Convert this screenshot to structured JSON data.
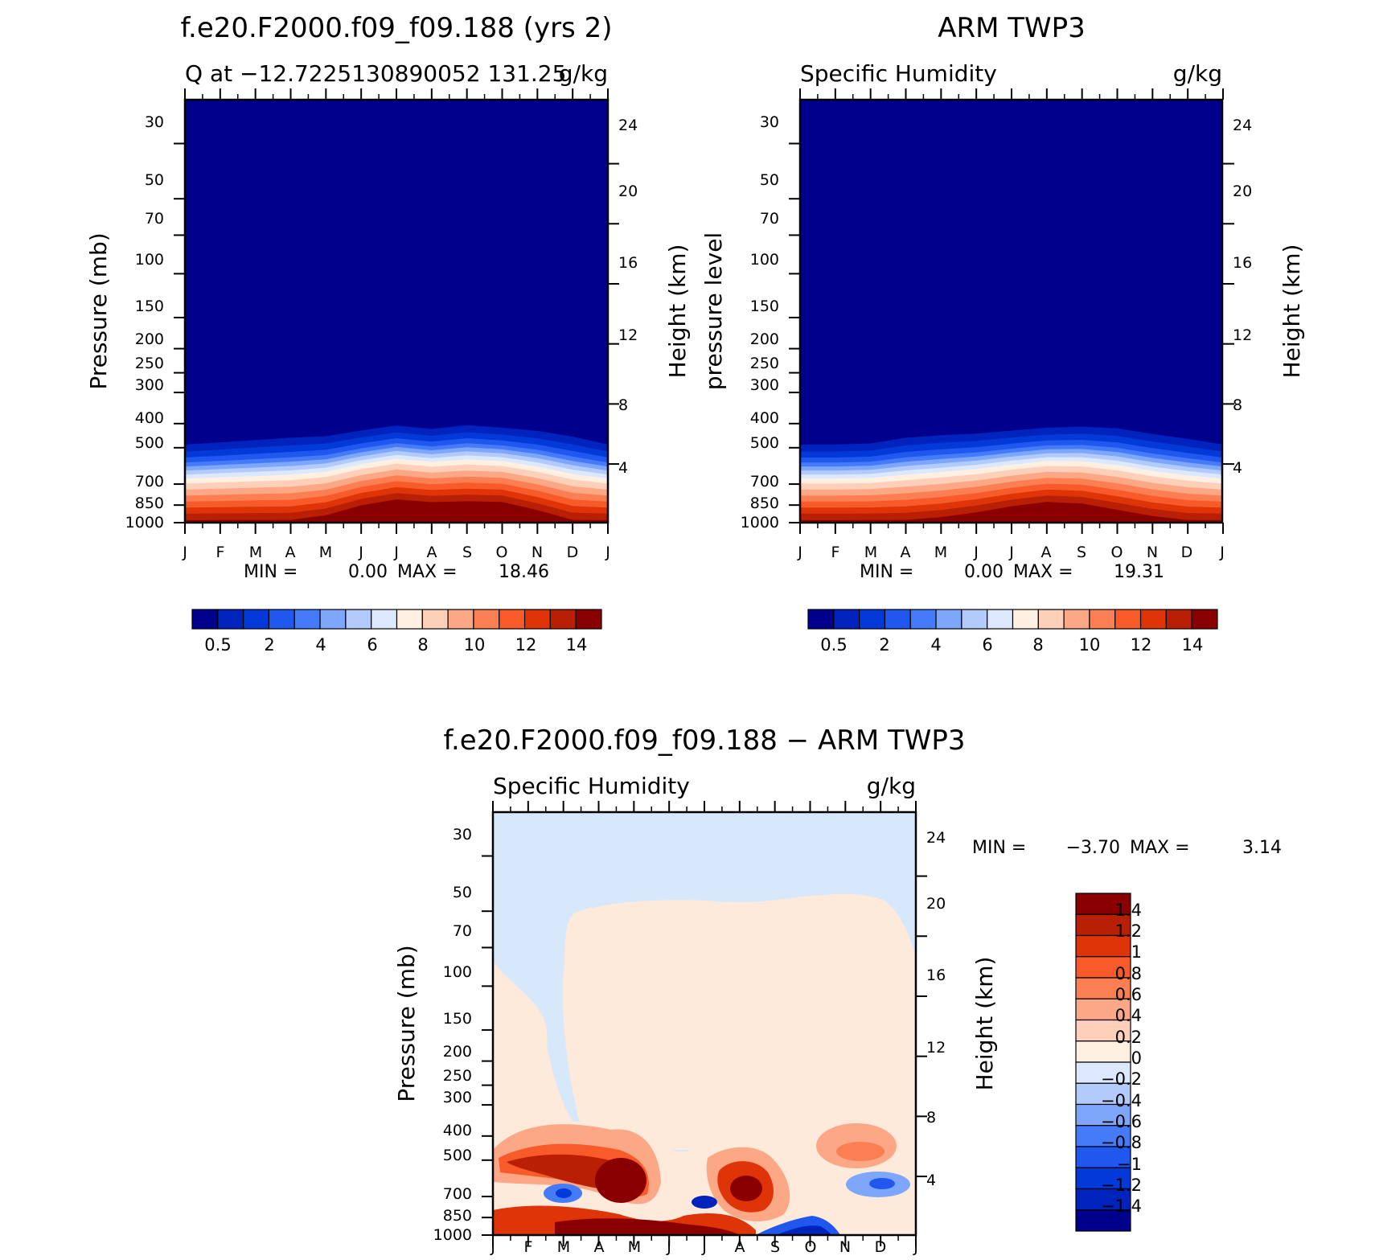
{
  "panels": [
    {
      "id": "model",
      "title": "f.e20.F2000.f09_f09.188 (yrs 2)",
      "left_label": "Q at −12.7225130890052 131.25",
      "units": "g/kg",
      "left_axis_title": "Pressure (mb)",
      "right_axis_title": "Height (km)",
      "min_label": "MIN =",
      "min_value": "0.00",
      "max_label": "MAX =",
      "max_value": "18.46",
      "bottom_air": [
        455,
        445,
        435,
        425,
        420,
        400,
        382,
        395,
        380,
        390,
        400,
        420,
        455
      ],
      "depth_scale": [
        1,
        1,
        1,
        1,
        0.95,
        0.85,
        0.8,
        0.82,
        0.82,
        0.82,
        0.9,
        1,
        1
      ]
    },
    {
      "id": "obs",
      "title": "ARM TWP3",
      "left_label": "Specific Humidity",
      "units": "g/kg",
      "left_axis_title": "pressure level",
      "right_axis_title": "Height (km)",
      "min_label": "MIN =",
      "min_value": "0.00",
      "max_label": "MAX =",
      "max_value": "19.31",
      "bottom_air": [
        455,
        455,
        450,
        425,
        415,
        410,
        400,
        390,
        385,
        390,
        410,
        430,
        455
      ],
      "depth_scale": [
        1,
        1,
        1,
        1,
        0.97,
        0.92,
        0.86,
        0.82,
        0.84,
        0.9,
        0.96,
        1,
        1
      ]
    },
    {
      "id": "diff",
      "title": "f.e20.F2000.f09_f09.188 − ARM TWP3",
      "left_label": "Specific Humidity",
      "units": "g/kg",
      "left_axis_title": "Pressure (mb)",
      "right_axis_title": "Height (km)",
      "min_label": "MIN =",
      "min_value": "−3.70",
      "max_label": "MAX =",
      "max_value": "3.14"
    }
  ],
  "chart_data": [
    {
      "type": "heatmap",
      "panel": "model",
      "title": "f.e20.F2000.f09_f09.188 (yrs 2)",
      "subtitle": "Q at −12.7225130890052 131.25",
      "units": "g/kg",
      "x": [
        "J",
        "F",
        "M",
        "A",
        "M",
        "J",
        "J",
        "A",
        "S",
        "O",
        "N",
        "D",
        "J"
      ],
      "xlabel": "",
      "ylabel": "Pressure (mb)",
      "y_ticks": [
        30,
        50,
        70,
        100,
        150,
        200,
        250,
        300,
        400,
        500,
        700,
        850,
        1000
      ],
      "ylim": [
        1000,
        20
      ],
      "y2label": "Height (km)",
      "y2_ticks": [
        4,
        8,
        12,
        16,
        20,
        24
      ],
      "min": 0.0,
      "max": 18.46,
      "colorbar_labels": [
        "0.5",
        "2",
        "4",
        "6",
        "8",
        "10",
        "12",
        "14"
      ]
    },
    {
      "type": "heatmap",
      "panel": "obs",
      "title": "ARM TWP3",
      "subtitle": "Specific Humidity",
      "units": "g/kg",
      "x": [
        "J",
        "F",
        "M",
        "A",
        "M",
        "J",
        "J",
        "A",
        "S",
        "O",
        "N",
        "D",
        "J"
      ],
      "xlabel": "",
      "ylabel": "pressure level",
      "y_ticks": [
        30,
        50,
        70,
        100,
        150,
        200,
        250,
        300,
        400,
        500,
        700,
        850,
        1000
      ],
      "ylim": [
        1000,
        20
      ],
      "y2label": "Height (km)",
      "y2_ticks": [
        4,
        8,
        12,
        16,
        20,
        24
      ],
      "min": 0.0,
      "max": 19.31,
      "colorbar_labels": [
        "0.5",
        "2",
        "4",
        "6",
        "8",
        "10",
        "12",
        "14"
      ]
    },
    {
      "type": "heatmap",
      "panel": "diff",
      "title": "f.e20.F2000.f09_f09.188 − ARM TWP3",
      "subtitle": "Specific Humidity",
      "units": "g/kg",
      "x": [
        "J",
        "F",
        "M",
        "A",
        "M",
        "J",
        "J",
        "A",
        "S",
        "O",
        "N",
        "D",
        "J"
      ],
      "xlabel": "",
      "ylabel": "Pressure (mb)",
      "y_ticks": [
        30,
        50,
        70,
        100,
        150,
        200,
        250,
        300,
        400,
        500,
        700,
        850,
        1000
      ],
      "ylim": [
        1000,
        20
      ],
      "y2label": "Height (km)",
      "y2_ticks": [
        4,
        8,
        12,
        16,
        20,
        24
      ],
      "min": -3.7,
      "max": 3.14,
      "colorbar_labels": [
        "1.4",
        "1.2",
        "1",
        "0.8",
        "0.6",
        "0.4",
        "0.2",
        "0",
        "−0.2",
        "−0.4",
        "−0.6",
        "−0.8",
        "−1",
        "−1.2",
        "−1.4"
      ]
    }
  ],
  "colors": {
    "seq16": [
      "#00008c",
      "#0022bd",
      "#0239d8",
      "#1f57ef",
      "#457bf8",
      "#7ea6fa",
      "#b2cbfb",
      "#dce8fd",
      "#fff0e2",
      "#fecfb9",
      "#fca785",
      "#fb7f52",
      "#f85a2a",
      "#de3408",
      "#b81f04",
      "#8a0000"
    ],
    "background_zero_neg": "#d8e8fb",
    "background_zero_pos": "#feeadb"
  }
}
